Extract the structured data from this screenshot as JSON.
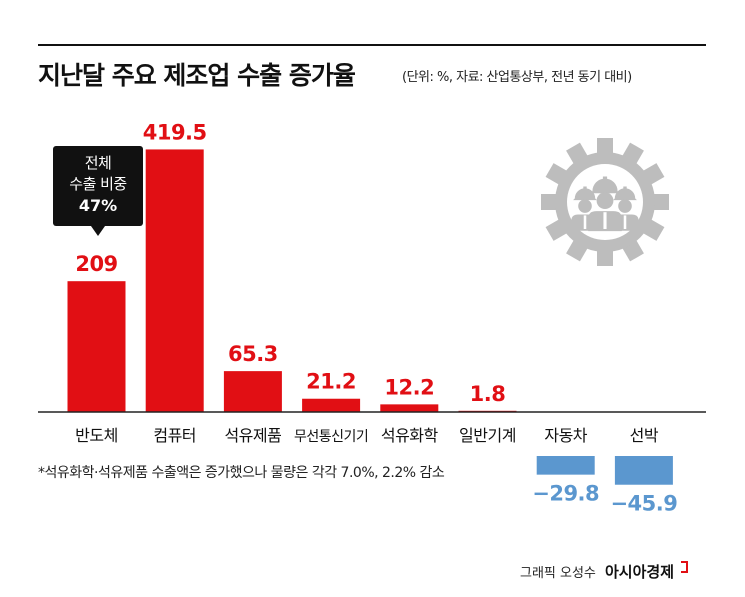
{
  "title": "지난달 주요 제조업 수출 증가율",
  "subtitle": "(단위: %, 자료: 산업통상부, 전년 동기 대비)",
  "callout": {
    "line1": "전체",
    "line2": "수출 비중",
    "value": "47%"
  },
  "footnote": "*석유화학·석유제품 수출액은 증가했으나 물량은 각각 7.0%, 2.2% 감소",
  "credit": {
    "author": "그래픽 오성수",
    "brand": "아시아경제"
  },
  "icon": "workers-gear-icon",
  "colors": {
    "positive": "#e10f14",
    "negative": "#5b97cf",
    "icon": "#bdbdbd"
  },
  "chart_data": {
    "type": "bar",
    "categories": [
      "반도체",
      "컴퓨터",
      "석유제품",
      "무선통신기기",
      "석유화학",
      "일반기계",
      "자동차",
      "선박"
    ],
    "values": [
      209,
      419.5,
      65.3,
      21.2,
      12.2,
      1.8,
      -29.8,
      -45.9
    ],
    "value_labels": [
      "209",
      "419.5",
      "65.3",
      "21.2",
      "12.2",
      "1.8",
      "−29.8",
      "−45.9"
    ],
    "ylim": [
      -45.9,
      419.5
    ]
  }
}
